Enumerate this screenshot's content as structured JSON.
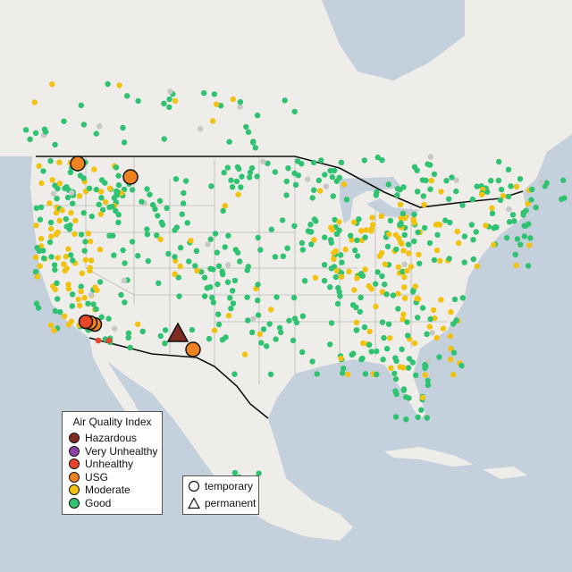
{
  "colors": {
    "land": "#eeede9",
    "water": "#c4d0dc",
    "border": "#111111",
    "state_line": "#b9b9b9"
  },
  "legend": {
    "title": "Air Quality Index",
    "items": [
      {
        "label": "Hazardous",
        "color": "#7e2b22"
      },
      {
        "label": "Very Unhealthy",
        "color": "#8f3fa6"
      },
      {
        "label": "Unhealthy",
        "color": "#e8452b"
      },
      {
        "label": "USG",
        "color": "#f08321"
      },
      {
        "label": "Moderate",
        "color": "#f2c211"
      },
      {
        "label": "Good",
        "color": "#2ec271"
      }
    ]
  },
  "monitor_legend": {
    "items": [
      {
        "label": "temporary",
        "icon": "circle-icon"
      },
      {
        "label": "permanent",
        "icon": "triangle-icon"
      }
    ]
  }
}
